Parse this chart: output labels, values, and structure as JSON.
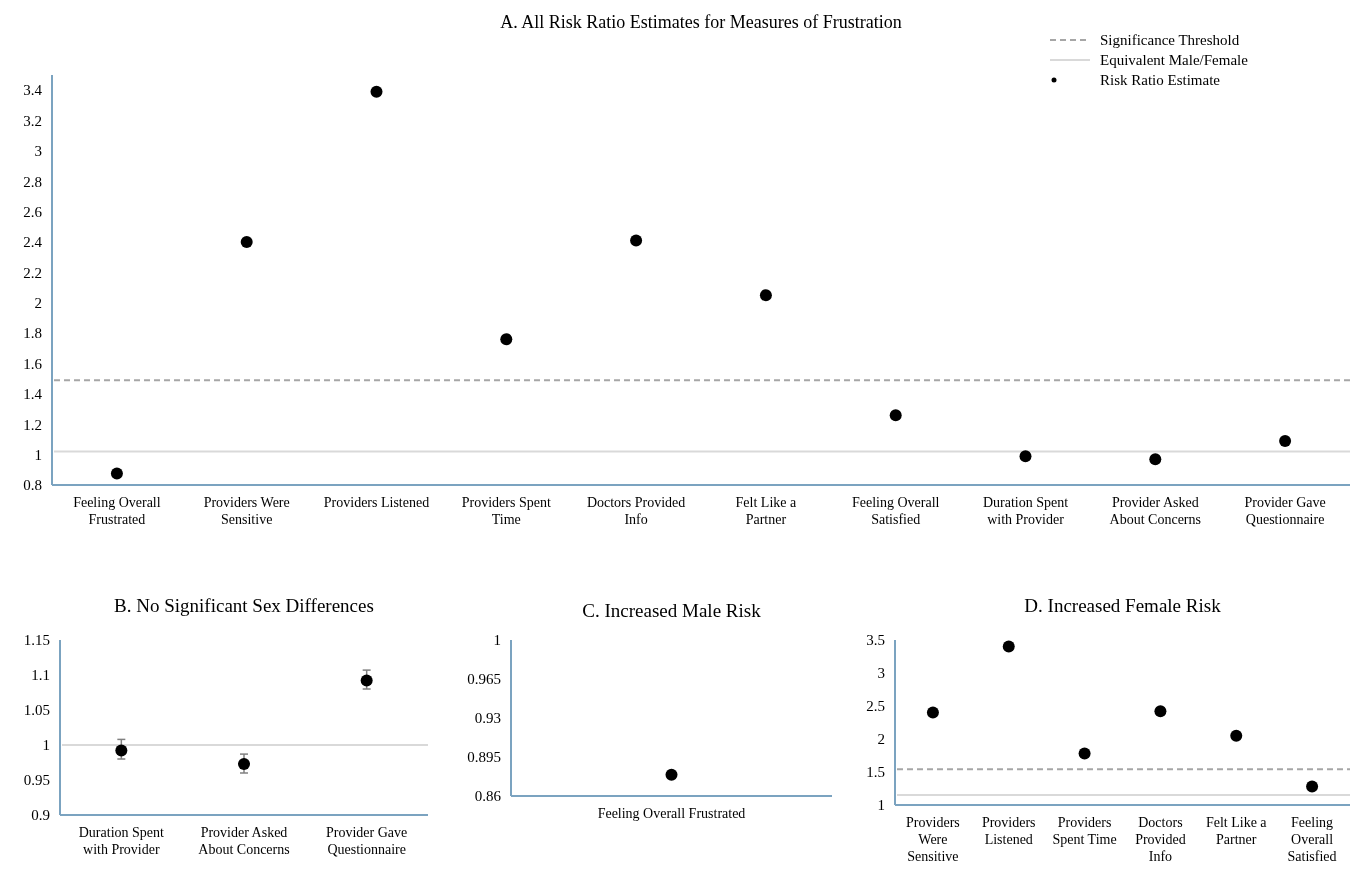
{
  "chart_data": [
    {
      "type": "scatter",
      "title": "A. All Risk Ratio Estimates for Measures of Frustration",
      "categories": [
        "Feeling Overall Frustrated",
        "Providers Were Sensitive",
        "Providers Listened",
        "Providers Spent Time",
        "Doctors Provided Info",
        "Felt Like a Partner",
        "Feeling Overall Satisfied",
        "Duration Spent with Provider",
        "Provider Asked About Concerns",
        "Provider Gave Questionnaire"
      ],
      "series": [
        {
          "name": "Risk Ratio Estimate",
          "color": "#000000",
          "values": [
            0.875,
            2.4,
            3.39,
            1.76,
            2.41,
            2.05,
            1.26,
            0.99,
            0.97,
            1.09
          ]
        }
      ],
      "ylim": [
        0.8,
        3.5
      ],
      "yticks": [
        0.8,
        1,
        1.2,
        1.4,
        1.6,
        1.8,
        2,
        2.2,
        2.4,
        2.6,
        2.8,
        3,
        3.2,
        3.4
      ],
      "ref_lines": [
        {
          "axis": "y",
          "value": 1.49,
          "label": "Significance Threshold",
          "color": "#a6a6a6",
          "line_style": "dashed"
        },
        {
          "axis": "y",
          "value": 1.02,
          "label": "Equivalent Male/Female",
          "color": "#d9d9d9",
          "line_style": "solid"
        }
      ],
      "marker": "circle",
      "legend": "top right"
    },
    {
      "type": "scatter",
      "title": "B. No Significant  Sex Differences",
      "categories": [
        "Duration Spent with Provider",
        "Provider Asked About Concerns",
        "Provider Gave Questionnaire"
      ],
      "series": [
        {
          "color": "#000000",
          "values": [
            0.992,
            0.973,
            1.092
          ],
          "errors": [
            [
              0.98,
              1.008
            ],
            [
              0.96,
              0.987
            ],
            [
              1.08,
              1.107
            ]
          ]
        }
      ],
      "ylim": [
        0.9,
        1.15
      ],
      "yticks": [
        0.9,
        0.95,
        1,
        1.05,
        1.1,
        1.15
      ],
      "ref_lines": [
        {
          "axis": "y",
          "value": 1,
          "color": "#d9d9d9",
          "line_style": "solid"
        }
      ],
      "marker": "circle"
    },
    {
      "type": "scatter",
      "title": "C. Increased Male Risk",
      "categories": [
        "Feeling Overall Frustrated"
      ],
      "series": [
        {
          "color": "#000000",
          "values": [
            0.879
          ]
        }
      ],
      "ylim": [
        0.86,
        1.0
      ],
      "yticks": [
        0.86,
        0.895,
        0.93,
        0.965,
        1
      ],
      "marker": "circle"
    },
    {
      "type": "scatter",
      "title": "D. Increased Female Risk",
      "categories": [
        "Providers Were Sensitive",
        "Providers Listened",
        "Providers Spent Time",
        "Doctors Provided Info",
        "Felt Like a Partner",
        "Feeling Overall Satisfied"
      ],
      "series": [
        {
          "color": "#000000",
          "values": [
            2.4,
            3.4,
            1.78,
            2.42,
            2.05,
            1.28
          ]
        }
      ],
      "ylim": [
        1,
        3.5
      ],
      "yticks": [
        1,
        1.5,
        2,
        2.5,
        3,
        3.5
      ],
      "ref_lines": [
        {
          "axis": "y",
          "value": 1.54,
          "color": "#a6a6a6",
          "line_style": "dashed"
        },
        {
          "axis": "y",
          "value": 1.15,
          "color": "#d9d9d9",
          "line_style": "solid"
        }
      ],
      "marker": "circle"
    }
  ]
}
